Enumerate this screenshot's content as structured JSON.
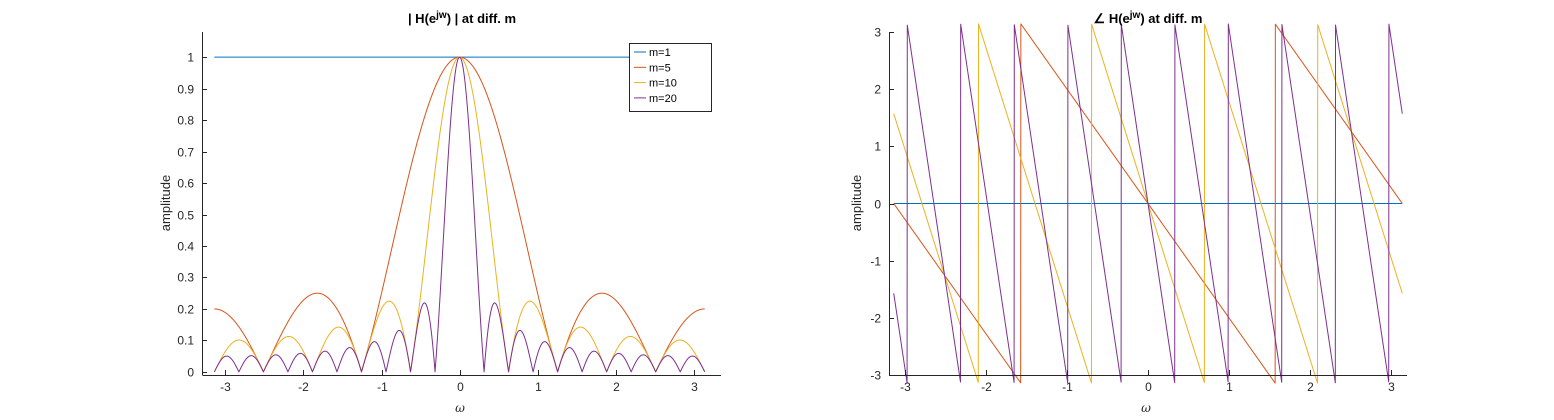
{
  "chart_data": [
    {
      "type": "line",
      "title": "| H(e^{jw}) | at diff. m",
      "title_parts": {
        "prefix": "| H(e",
        "sup": "jw",
        "suffix": ") | at diff. m"
      },
      "xlabel": "ω",
      "ylabel": "amplitude",
      "xlim": [
        -3.3,
        3.35
      ],
      "ylim": [
        -0.01,
        1.08
      ],
      "xticks": [
        -3,
        -2,
        -1,
        0,
        1,
        2,
        3
      ],
      "yticks": [
        0,
        0.1,
        0.2,
        0.3,
        0.4,
        0.5,
        0.6,
        0.7,
        0.8,
        0.9,
        1
      ],
      "x_range": [
        -3.14159,
        3.14159
      ],
      "function": "abs(sin(m*w/2)/(m*sin(w/2)))",
      "grid": false,
      "legend": {
        "position": "top-right",
        "entries": [
          "m=1",
          "m=5",
          "m=10",
          "m=20"
        ]
      },
      "series": [
        {
          "name": "m=1",
          "m": 1,
          "color": "#0072BD"
        },
        {
          "name": "m=5",
          "m": 5,
          "color": "#D95319"
        },
        {
          "name": "m=10",
          "m": 10,
          "color": "#EDB120"
        },
        {
          "name": "m=20",
          "m": 20,
          "color": "#7E2F8E"
        }
      ]
    },
    {
      "type": "line",
      "title": "∠ H(e^{jw}) at diff. m",
      "title_parts": {
        "prefix": "∠ H(e",
        "sup": "jw",
        "suffix": ") at diff. m"
      },
      "xlabel": "ω",
      "ylabel": "amplitude",
      "xlim": [
        -3.2,
        3.2
      ],
      "ylim": [
        -3,
        3
      ],
      "xticks": [
        -3,
        -2,
        -1,
        0,
        1,
        2,
        3
      ],
      "yticks": [
        -3,
        -2,
        -1,
        0,
        1,
        2,
        3
      ],
      "x_range": [
        -3.14159,
        3.14159
      ],
      "function": "-(m-1)*w/2 wrapped to [-pi, pi]",
      "grid": false,
      "series": [
        {
          "name": "m=1",
          "m": 1,
          "color": "#0072BD"
        },
        {
          "name": "m=5",
          "m": 5,
          "color": "#D95319"
        },
        {
          "name": "m=10",
          "m": 10,
          "color": "#EDB120"
        },
        {
          "name": "m=20",
          "m": 20,
          "color": "#7E2F8E"
        }
      ]
    }
  ]
}
